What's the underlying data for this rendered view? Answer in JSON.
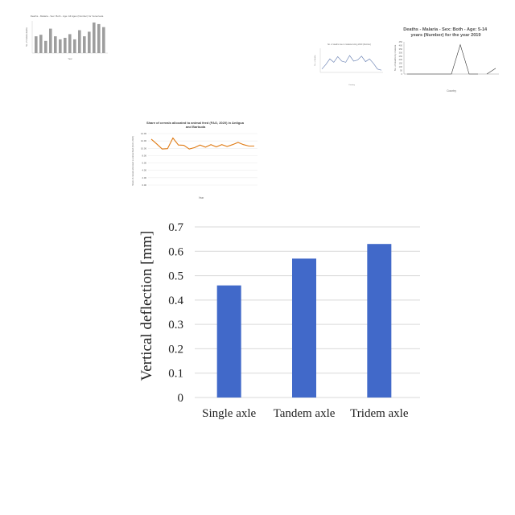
{
  "thumbnails": {
    "malaria_bar_small": {
      "title": "Deaths - Malaria - Sex: Both - Age: All Ages (Number) for Venezuela",
      "ylabel": "No. of malaria deaths",
      "xlabel": "Year",
      "values": [
        0.55,
        0.6,
        0.4,
        0.8,
        0.55,
        0.45,
        0.5,
        0.62,
        0.45,
        0.75,
        0.55,
        0.7,
        1.0,
        0.95,
        0.85
      ],
      "bar_color": "#9e9e9e"
    },
    "line_small": {
      "title": "No. of deaths due to malaria during 2020 (Number)",
      "ylabel": "No. of deaths",
      "xlabel": "Country",
      "values": [
        0.15,
        0.35,
        0.6,
        0.45,
        0.7,
        0.5,
        0.45,
        0.75,
        0.5,
        0.55,
        0.72,
        0.48,
        0.6,
        0.4,
        0.15,
        0.1
      ],
      "line_color": "#6f86b6"
    },
    "malaria_line_2019": {
      "title": "Deaths - Malaria - Sex: Both - Age: 5-14 years (Number) for the year 2019",
      "ylabel": "No. of deaths by malaria",
      "xlabel": "Country",
      "ticks": [
        "450",
        "400",
        "350",
        "300",
        "250",
        "200",
        "150",
        "100",
        "50",
        "0"
      ],
      "values": [
        0,
        0,
        0,
        0,
        0,
        0,
        410,
        0,
        0,
        0,
        80
      ],
      "line_color": "#333333"
    },
    "cereals_line": {
      "title": "Share of cereals allocated to animal feed (FAO, 2020) in Antigua and Barbuda",
      "ylabel": "Share of cereals allocated to animal feed (FAO, 2020)",
      "xlabel": "Year",
      "ticks": [
        "14.00",
        "12.00",
        "10.00",
        "8.00",
        "6.00",
        "4.00",
        "2.00",
        "0.00"
      ],
      "values": [
        12.5,
        11.2,
        9.8,
        9.9,
        12.8,
        10.9,
        10.8,
        9.8,
        10.2,
        10.9,
        10.3,
        11.0,
        10.4,
        11.0,
        10.5,
        11.0,
        11.6,
        11.0,
        10.6,
        10.6
      ],
      "line_color": "#e07b14"
    }
  },
  "chart_data": {
    "type": "bar",
    "categories": [
      "Single axle",
      "Tandem axle",
      "Tridem axle"
    ],
    "values": [
      0.46,
      0.57,
      0.63
    ],
    "ylabel": "Vertical deflection [mm]",
    "xlabel": "",
    "title": "",
    "ylim": [
      0,
      0.7
    ],
    "yticks": [
      "0",
      "0.1",
      "0.2",
      "0.3",
      "0.4",
      "0.5",
      "0.6",
      "0.7"
    ],
    "grid": true,
    "bar_color": "#4169c9"
  }
}
